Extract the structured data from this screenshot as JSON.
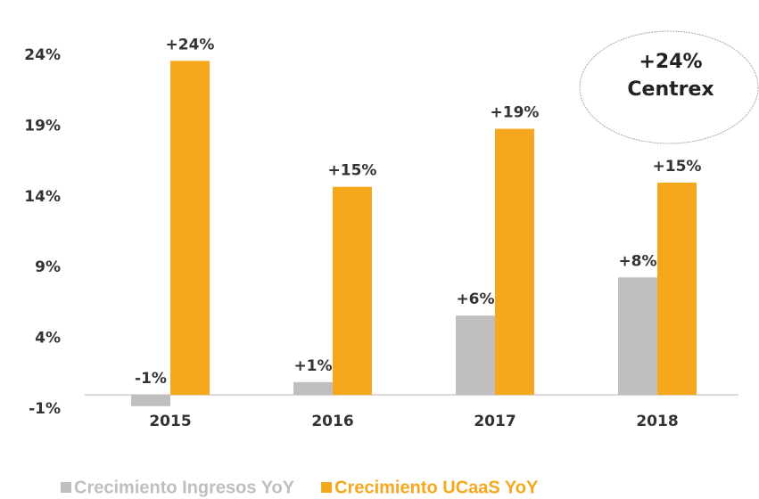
{
  "chart_data": {
    "type": "bar",
    "categories": [
      "2015",
      "2016",
      "2017",
      "2018"
    ],
    "series": [
      {
        "name": "Crecimiento Ingresos YoY",
        "color": "#bfbfbf",
        "values": [
          -0.8,
          0.9,
          5.6,
          8.3
        ],
        "value_labels": [
          "-1%",
          "+1%",
          "+6%",
          "+8%"
        ]
      },
      {
        "name": "Crecimiento UCaaS YoY",
        "color": "#f5a81c",
        "values": [
          23.6,
          14.7,
          18.8,
          15.0
        ],
        "value_labels": [
          "+24%",
          "+15%",
          "+19%",
          "+15%"
        ]
      }
    ],
    "ylim": [
      -1,
      24
    ],
    "yticks": [
      {
        "value": -1,
        "label": "-1%"
      },
      {
        "value": 4,
        "label": "4%"
      },
      {
        "value": 9,
        "label": "9%"
      },
      {
        "value": 14,
        "label": "14%"
      },
      {
        "value": 19,
        "label": "19%"
      },
      {
        "value": 24,
        "label": "24%"
      }
    ],
    "annotation": [
      "+24%",
      "Centrex"
    ],
    "legend": "bottom"
  }
}
